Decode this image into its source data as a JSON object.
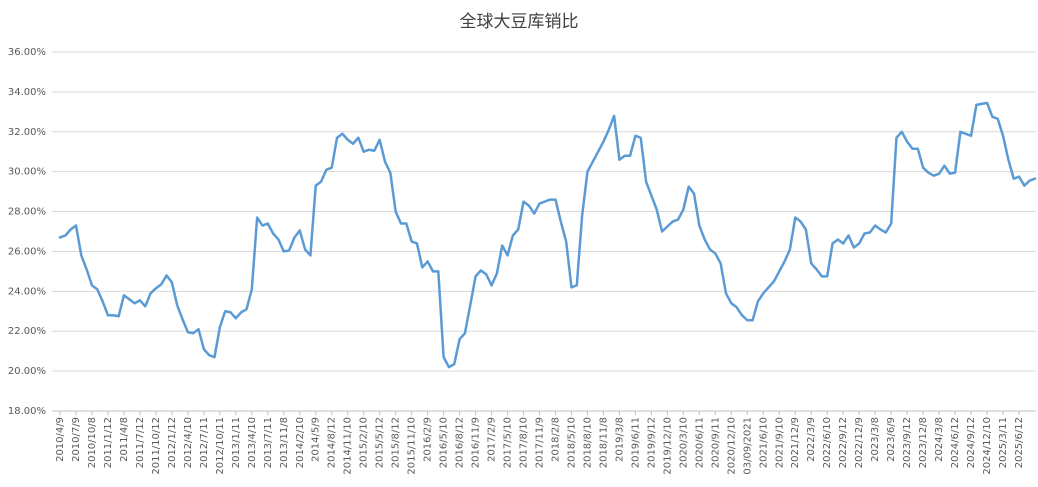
{
  "chart_data": {
    "type": "line",
    "title": "全球大豆库销比",
    "categories": [
      "2010/4/9",
      null,
      null,
      "2010/7/9",
      null,
      null,
      "2010/10/8",
      null,
      null,
      "2011/1/12",
      null,
      null,
      "2011/4/8",
      null,
      null,
      "2011/7/12",
      null,
      null,
      "2011/10/12",
      null,
      null,
      "2012/1/12",
      null,
      null,
      "2012/4/10",
      null,
      null,
      "2012/7/11",
      null,
      null,
      "2012/10/11",
      null,
      null,
      "2013/1/11",
      null,
      null,
      "2013/4/10",
      null,
      null,
      "2013/7/11",
      null,
      null,
      "2013/11/8",
      null,
      null,
      "2014/2/10",
      null,
      null,
      "2014/5/9",
      null,
      null,
      "2014/8/12",
      null,
      null,
      "2014/11/10",
      null,
      null,
      "2015/2/10",
      null,
      null,
      "2015/5/12",
      null,
      null,
      "2015/8/12",
      null,
      null,
      "2015/11/10",
      null,
      null,
      "2016/2/9",
      null,
      null,
      "2016/5/10",
      null,
      null,
      "2016/8/12",
      null,
      null,
      "2016/11/9",
      null,
      null,
      "2017/2/9",
      null,
      null,
      "2017/5/10",
      null,
      null,
      "2017/8/10",
      null,
      null,
      "2017/11/9",
      null,
      null,
      "2018/2/8",
      null,
      null,
      "2018/5/10",
      null,
      null,
      "2018/8/10",
      null,
      null,
      "2018/11/8",
      null,
      null,
      "2019/3/8",
      null,
      null,
      "2019/6/11",
      null,
      null,
      "2019/9/12",
      null,
      null,
      "2019/12/10",
      null,
      null,
      "2020/3/10",
      null,
      null,
      "2020/6/11",
      null,
      null,
      "2020/9/11",
      null,
      null,
      "2020/12/10",
      null,
      null,
      "03/09/2021",
      null,
      null,
      "2021/6/10",
      null,
      null,
      "2021/9/10",
      null,
      null,
      "2021/12/9",
      null,
      null,
      "2022/3/9",
      null,
      null,
      "2022/6/10",
      null,
      null,
      "2022/9/12",
      null,
      null,
      "2022/12/9",
      null,
      null,
      "2023/3/8",
      null,
      null,
      "2023/6/9",
      null,
      null,
      "2023/9/12",
      null,
      null,
      "2023/12/8",
      null,
      null,
      "2024/3/8",
      null,
      null,
      "2024/6/12",
      null,
      null,
      "2024/9/12",
      null,
      null,
      "2024/12/10",
      null,
      null,
      "2025/3/11",
      null,
      null,
      "2025/6/12",
      null,
      null,
      null
    ],
    "values": [
      26.7,
      26.8,
      27.1,
      27.3,
      25.8,
      25.1,
      24.3,
      24.1,
      23.5,
      22.8,
      22.8,
      22.75,
      23.8,
      23.6,
      23.4,
      23.55,
      23.25,
      23.9,
      24.15,
      24.35,
      24.8,
      24.45,
      23.3,
      22.6,
      21.95,
      21.9,
      22.1,
      21.1,
      20.8,
      20.7,
      22.2,
      23.0,
      22.95,
      22.65,
      22.95,
      23.1,
      24.1,
      27.7,
      27.3,
      27.4,
      26.9,
      26.6,
      26.0,
      26.05,
      26.7,
      27.05,
      26.1,
      25.8,
      29.3,
      29.5,
      30.1,
      30.2,
      31.7,
      31.9,
      31.6,
      31.4,
      31.7,
      31.0,
      31.1,
      31.05,
      31.6,
      30.5,
      29.95,
      28.0,
      27.4,
      27.4,
      26.5,
      26.4,
      25.2,
      25.5,
      25.0,
      25.0,
      20.7,
      20.2,
      20.35,
      21.6,
      21.9,
      23.3,
      24.75,
      25.05,
      24.85,
      24.3,
      24.9,
      26.3,
      25.8,
      26.8,
      27.1,
      28.5,
      28.3,
      27.9,
      28.4,
      28.5,
      28.6,
      28.6,
      27.5,
      26.5,
      24.2,
      24.3,
      27.8,
      30.0,
      30.5,
      31.0,
      31.5,
      32.1,
      32.8,
      30.6,
      30.8,
      30.8,
      31.8,
      31.7,
      29.5,
      28.8,
      28.1,
      27.0,
      27.25,
      27.5,
      27.6,
      28.1,
      29.25,
      28.9,
      27.3,
      26.6,
      26.1,
      25.9,
      25.4,
      23.9,
      23.4,
      23.2,
      22.8,
      22.55,
      22.55,
      23.5,
      23.9,
      24.2,
      24.5,
      25.0,
      25.5,
      26.1,
      27.7,
      27.5,
      27.1,
      25.4,
      25.1,
      24.75,
      24.75,
      26.4,
      26.6,
      26.4,
      26.8,
      26.2,
      26.4,
      26.9,
      26.95,
      27.3,
      27.1,
      26.95,
      27.4,
      31.7,
      32.0,
      31.5,
      31.15,
      31.15,
      30.2,
      29.95,
      29.8,
      29.9,
      30.3,
      29.9,
      29.95,
      32.0,
      31.9,
      31.8,
      33.35,
      33.4,
      33.45,
      32.75,
      32.65,
      31.8,
      30.6,
      29.65,
      29.75,
      29.3,
      29.55,
      29.65
    ],
    "color": "#5b9bd5",
    "ylim": [
      18,
      36
    ],
    "yticks": [
      {
        "value": 18,
        "label": "18.00%"
      },
      {
        "value": 20,
        "label": "20.00%"
      },
      {
        "value": 22,
        "label": "22.00%"
      },
      {
        "value": 24,
        "label": "24.00%"
      },
      {
        "value": 26,
        "label": "26.00%"
      },
      {
        "value": 28,
        "label": "28.00%"
      },
      {
        "value": 30,
        "label": "30.00%"
      },
      {
        "value": 32,
        "label": "32.00%"
      },
      {
        "value": 34,
        "label": "34.00%"
      },
      {
        "value": 36,
        "label": "36.00%"
      }
    ],
    "grid": true
  }
}
